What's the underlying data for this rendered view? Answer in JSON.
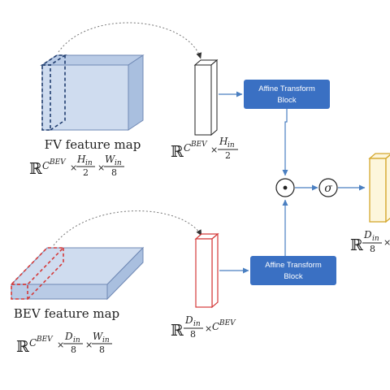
{
  "fv": {
    "label": "FV feature map",
    "formula": {
      "set": "ℝ",
      "c": "C",
      "c_sup": "BEV",
      "times": "×",
      "n1": "H",
      "n1_sub": "in",
      "d1": "2",
      "n2": "W",
      "n2_sub": "in",
      "d2": "8"
    }
  },
  "bev": {
    "label": "BEV feature map",
    "formula": {
      "set": "ℝ",
      "c": "C",
      "c_sup": "BEV",
      "times": "×",
      "n1": "D",
      "n1_sub": "in",
      "d1": "8",
      "n2": "W",
      "n2_sub": "in",
      "d2": "8"
    }
  },
  "fv_vector": {
    "formula": {
      "set": "ℝ",
      "c": "C",
      "c_sup": "BEV",
      "times": "×",
      "n1": "H",
      "n1_sub": "in",
      "d1": "2"
    }
  },
  "bev_vector": {
    "formula": {
      "set": "ℝ",
      "n1": "D",
      "n1_sub": "in",
      "d1": "8",
      "times": "×",
      "c": "C",
      "c_sup": "BEV"
    }
  },
  "output_vector": {
    "formula": {
      "set": "ℝ",
      "n1": "D",
      "n1_sub": "in",
      "d1": "8",
      "times": "×"
    }
  },
  "blocks": {
    "top": {
      "line1": "Affine Transform",
      "line2": "Block"
    },
    "bottom": {
      "line1": "Affine Transform",
      "line2": "Block"
    }
  },
  "operators": {
    "product": "·",
    "sigmoid": "σ"
  },
  "colors": {
    "block_fill": "#3a70c3",
    "arrow": "#4a7fc1",
    "map_face": "#cfdcef",
    "map_top": "#b9cbe6",
    "map_side": "#a9bfdf",
    "fv_vector_stroke": "#222222",
    "bev_vector_stroke": "#d43a3a",
    "output_stroke": "#d4a72c",
    "output_fill": "#fdf6dc"
  }
}
